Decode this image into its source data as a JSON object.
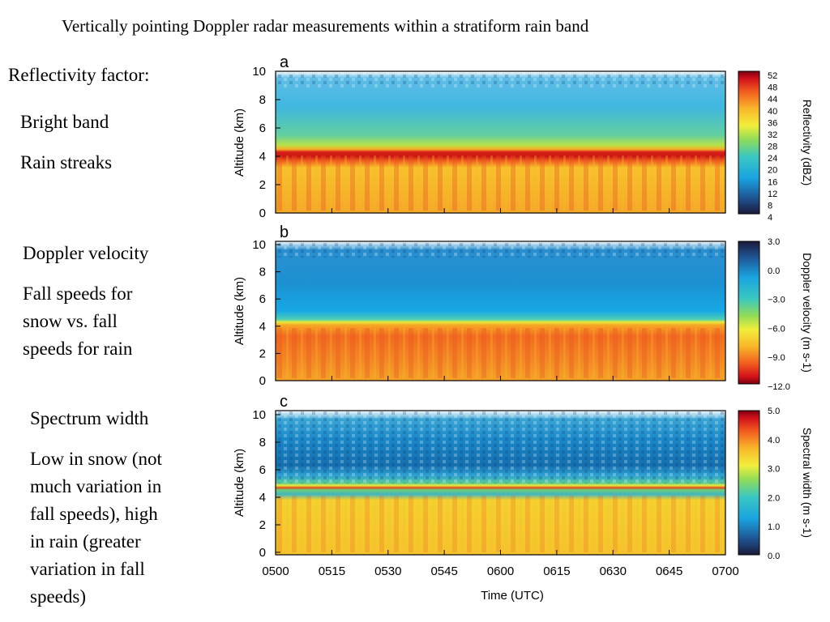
{
  "slide": {
    "title": "Vertically pointing Doppler radar measurements within a stratiform rain band",
    "notes": {
      "reflectivity_heading": "Reflectivity factor:",
      "bright_band": "Bright band",
      "rain_streaks": "Rain streaks",
      "doppler_heading": "Doppler velocity",
      "doppler_lines": [
        "Fall speeds for",
        "snow vs. fall",
        "speeds for rain"
      ],
      "spectrum_heading": "Spectrum width",
      "spectrum_lines": [
        "Low in snow (not",
        "much variation in",
        "fall speeds), high",
        "in rain (greater",
        "variation in fall",
        "speeds)"
      ]
    }
  },
  "chart_data": [
    {
      "type": "heatmap",
      "panel": "a",
      "variable": "Reflectivity",
      "ylabel": "Altitude (km)",
      "xlabel": "Time (UTC)",
      "ylim": [
        0,
        10
      ],
      "yticks": [
        "0",
        "2",
        "4",
        "6",
        "8",
        "10"
      ],
      "colorbar_label": "Reflectivity (dBZ)",
      "colorbar_ticks": [
        "4",
        "8",
        "12",
        "16",
        "20",
        "24",
        "28",
        "32",
        "36",
        "40",
        "44",
        "48",
        "52"
      ],
      "colorbar_range": [
        4,
        52
      ],
      "layers": [
        {
          "region": "above 4.6 km (snow)",
          "value_dBZ": 18
        },
        {
          "region": "bright band ~4.3 km",
          "value_dBZ": 46
        },
        {
          "region": "below 4 km (rain)",
          "value_dBZ": 34
        }
      ]
    },
    {
      "type": "heatmap",
      "panel": "b",
      "variable": "Doppler velocity",
      "ylabel": "Altitude (km)",
      "xlabel": "Time (UTC)",
      "ylim": [
        0,
        10
      ],
      "yticks": [
        "0",
        "2",
        "4",
        "6",
        "8",
        "10"
      ],
      "colorbar_label": "Doppler velocity (m s-1)",
      "colorbar_ticks": [
        "3.0",
        "0.0",
        "−3.0",
        "−6.0",
        "−9.0",
        "−12.0"
      ],
      "colorbar_range": [
        3,
        -12
      ],
      "layers": [
        {
          "region": "above 4.6 km (snow)",
          "value_ms": -1.5
        },
        {
          "region": "below 4 km (rain)",
          "value_ms": -8
        }
      ]
    },
    {
      "type": "heatmap",
      "panel": "c",
      "variable": "Spectral width",
      "ylabel": "Altitude (km)",
      "xlabel": "Time (UTC)",
      "ylim": [
        0,
        10
      ],
      "yticks": [
        "0",
        "2",
        "4",
        "6",
        "8",
        "10"
      ],
      "xticks": [
        "0500",
        "0515",
        "0530",
        "0545",
        "0600",
        "0615",
        "0630",
        "0645",
        "0700"
      ],
      "colorbar_label": "Spectral width (m s-1)",
      "colorbar_ticks": [
        "5.0",
        "4.0",
        "3.0",
        "2.0",
        "1.0",
        "0.0"
      ],
      "colorbar_range": [
        5,
        0
      ],
      "layers": [
        {
          "region": "above 5 km (snow)",
          "value_ms": 1.2
        },
        {
          "region": "melting layer ~4.8 km",
          "value_ms": 4.0
        },
        {
          "region": "below 4 km (rain)",
          "value_ms": 3.3
        }
      ]
    }
  ]
}
